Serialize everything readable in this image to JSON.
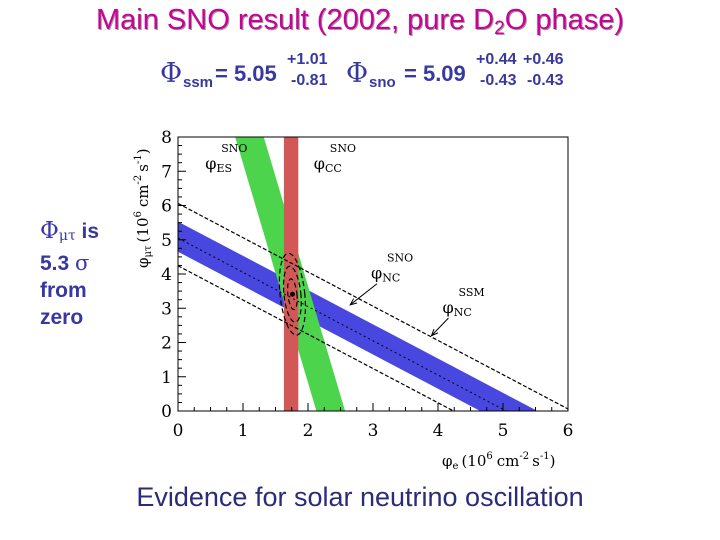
{
  "title": {
    "main": "Main SNO result (2002, pure D",
    "sub": "2",
    "rest": "O phase)"
  },
  "results": {
    "ssm": {
      "symbol": "Φ",
      "label": "ssm",
      "eq": "= 5.05",
      "up": "+1.01",
      "down": "-0.81"
    },
    "sno": {
      "symbol": "Φ",
      "label": "sno",
      "eq": "= 5.09",
      "up": "+0.44",
      "down": "-0.43",
      "up2": "+0.46",
      "down2": "-0.43"
    }
  },
  "side_note": {
    "symbol": "Φ",
    "subscript": "μτ",
    "is": "is",
    "line2_num": "5.3",
    "line2_sigma": "σ",
    "line3": "from",
    "line4": "zero"
  },
  "footer": "Evidence for solar neutrino oscillation",
  "colors": {
    "title": "#cc0099",
    "blue_text": "#3838a0",
    "nc_band": "#4848e0",
    "es_band": "#4cd44c",
    "cc_band": "#d25858"
  },
  "chart_data": {
    "type": "band-constraint",
    "xlabel": {
      "phi": "φ",
      "sub": "e",
      "rest": "(10",
      "exp": "6",
      "unit": "cm",
      "unitexp": "-2",
      "s": "s",
      "sexp": "-1",
      "close": ")"
    },
    "ylabel": {
      "phi": "φ",
      "sub": "μτ",
      "rest": "(10",
      "exp": "6",
      "unit": "cm",
      "unitexp": "-2",
      "s": "s",
      "sexp": "-1",
      "close": ")"
    },
    "xlim": [
      0,
      6
    ],
    "ylim": [
      0,
      8
    ],
    "xticks": [
      "0",
      "1",
      "2",
      "3",
      "4",
      "5",
      "6"
    ],
    "yticks": [
      "0",
      "1",
      "2",
      "3",
      "4",
      "5",
      "6",
      "7",
      "8"
    ],
    "cc_band": {
      "xmin": 1.63,
      "xmax": 1.85
    },
    "es_band": {
      "total": 2.35,
      "halfwidth": 0.22,
      "slope_y_per_x": 6.4
    },
    "nc_band": {
      "total": 5.09,
      "halfwidth": 0.44
    },
    "ssm_band": {
      "total": 5.05,
      "upper": 6.06,
      "lower": 4.24
    },
    "best_fit": {
      "x": 1.76,
      "y": 3.41
    },
    "ellipses": [
      {
        "rx": 0.07,
        "ry": 0.45
      },
      {
        "rx": 0.13,
        "ry": 0.82
      },
      {
        "rx": 0.19,
        "ry": 1.2
      }
    ],
    "annotations": [
      {
        "id": "es",
        "label": "SNO",
        "phi": "φ",
        "sub": "ES",
        "x": 0.45,
        "y": 7.5
      },
      {
        "id": "cc",
        "label": "SNO",
        "phi": "φ",
        "sub": "CC",
        "x": 2.12,
        "y": 7.5
      },
      {
        "id": "nc",
        "label": "SNO",
        "phi": "φ",
        "sub": "NC",
        "x": 3.0,
        "y": 4.3,
        "arrow_to_x": 2.65,
        "arrow_to_y": 3.1
      },
      {
        "id": "ssm",
        "label": "SSM",
        "phi": "φ",
        "sub": "NC",
        "x": 4.1,
        "y": 3.3,
        "arrow_to_x": 3.9,
        "arrow_to_y": 2.2
      }
    ]
  }
}
